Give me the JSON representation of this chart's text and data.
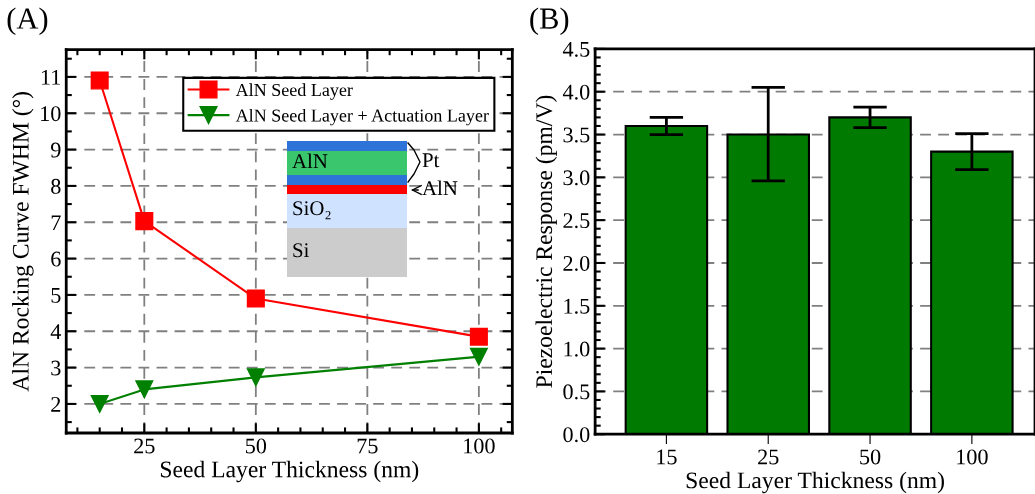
{
  "chart_data": [
    {
      "type": "line",
      "title": "(A)",
      "xlabel": "Seed Layer Thickness (nm)",
      "ylabel": "AlN Rocking Curve FWHM (°)",
      "x": [
        15,
        25,
        50,
        100
      ],
      "series": [
        {
          "name": "AlN Seed Layer",
          "color": "#ff0000",
          "marker": "square",
          "values": [
            10.9,
            7.03,
            4.9,
            3.85
          ]
        },
        {
          "name": "AlN Seed Layer + Actuation Layer",
          "color": "#008000",
          "marker": "triangle",
          "values": [
            2.0,
            2.4,
            2.73,
            3.3
          ]
        }
      ],
      "xlim": [
        7.5,
        107.5
      ],
      "xticks": [
        25,
        50,
        75,
        100
      ],
      "ylim": [
        1.2,
        11.75
      ],
      "yticks": [
        2,
        3,
        4,
        5,
        6,
        7,
        8,
        9,
        10,
        11
      ],
      "grid": true,
      "legend": "top right",
      "line_style": "solid",
      "annotations": [
        "AlN",
        "Pt",
        "AlN",
        "SiO₂",
        "Si"
      ]
    },
    {
      "type": "bar",
      "title": "(B)",
      "xlabel": "Seed Layer Thickness (nm)",
      "ylabel": "Piezoelectric Response (pm/V)",
      "categories": [
        "15",
        "25",
        "50",
        "100"
      ],
      "values": [
        3.6,
        3.5,
        3.7,
        3.3
      ],
      "errors": [
        [
          3.5,
          3.7
        ],
        [
          2.96,
          4.05
        ],
        [
          3.58,
          3.82
        ],
        [
          3.09,
          3.51
        ]
      ],
      "color": "#007a00",
      "ylim": [
        0,
        4.5
      ],
      "yticks": [
        {
          "value": 0,
          "label": "0.0"
        },
        {
          "value": 0.5,
          "label": "0.5"
        },
        {
          "value": 1,
          "label": "1.0"
        },
        {
          "value": 1.5,
          "label": "1.5"
        },
        {
          "value": 2,
          "label": "2.0"
        },
        {
          "value": 2.5,
          "label": "2.5"
        },
        {
          "value": 3,
          "label": "3.0"
        },
        {
          "value": 3.5,
          "label": "3.5"
        },
        {
          "value": 4,
          "label": "4.0"
        },
        {
          "value": 4.5,
          "label": "4.5"
        }
      ],
      "grid": "y"
    }
  ]
}
